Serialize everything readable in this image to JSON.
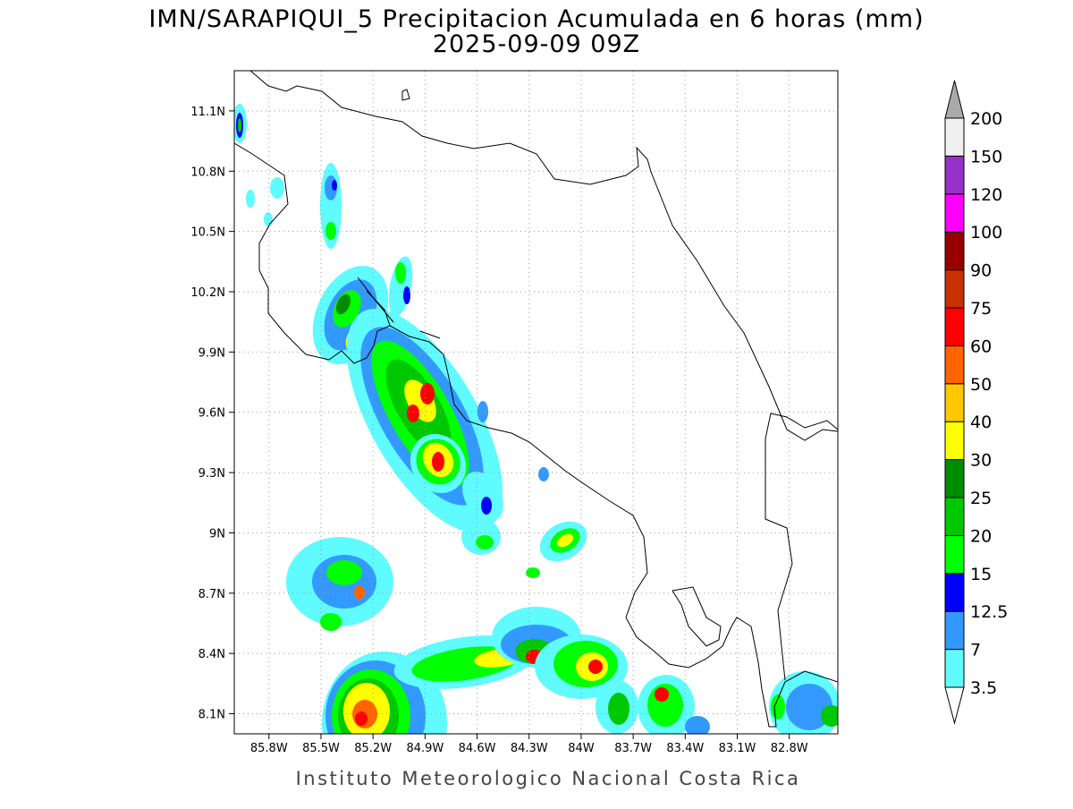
{
  "chart_data": {
    "type": "contour-map",
    "title": "IMN/SARAPIQUI_5 Precipitacion Acumulada en 6 horas (mm)",
    "subtitle": "2025-09-09 09Z",
    "footer": "Instituto Meteorologico Nacional Costa Rica",
    "xlim": [
      -86.0,
      -82.52
    ],
    "ylim": [
      8.0,
      11.3
    ],
    "xticks": [
      {
        "value": -85.8,
        "label": "85.8W"
      },
      {
        "value": -85.5,
        "label": "85.5W"
      },
      {
        "value": -85.2,
        "label": "85.2W"
      },
      {
        "value": -84.9,
        "label": "84.9W"
      },
      {
        "value": -84.6,
        "label": "84.6W"
      },
      {
        "value": -84.3,
        "label": "84.3W"
      },
      {
        "value": -84.0,
        "label": "84W"
      },
      {
        "value": -83.7,
        "label": "83.7W"
      },
      {
        "value": -83.4,
        "label": "83.4W"
      },
      {
        "value": -83.1,
        "label": "83.1W"
      },
      {
        "value": -82.8,
        "label": "82.8W"
      }
    ],
    "yticks": [
      {
        "value": 8.1,
        "label": "8.1N"
      },
      {
        "value": 8.4,
        "label": "8.4N"
      },
      {
        "value": 8.7,
        "label": "8.7N"
      },
      {
        "value": 9.0,
        "label": "9N"
      },
      {
        "value": 9.3,
        "label": "9.3N"
      },
      {
        "value": 9.6,
        "label": "9.6N"
      },
      {
        "value": 9.9,
        "label": "9.9N"
      },
      {
        "value": 10.2,
        "label": "10.2N"
      },
      {
        "value": 10.5,
        "label": "10.5N"
      },
      {
        "value": 10.8,
        "label": "10.8N"
      },
      {
        "value": 11.1,
        "label": "11.1N"
      }
    ],
    "grid": true,
    "colorbar": {
      "levels": [
        3.5,
        7,
        12.5,
        15,
        20,
        25,
        30,
        40,
        50,
        60,
        75,
        90,
        100,
        120,
        150,
        200
      ],
      "colors": [
        "#ffffff",
        "#5ffbff",
        "#3399ff",
        "#0000ff",
        "#00ff00",
        "#00c800",
        "#008c00",
        "#ffff00",
        "#ffc800",
        "#ff6400",
        "#ff0000",
        "#c83200",
        "#960000",
        "#ff00ff",
        "#9632c8",
        "#f0f0f0",
        "#aaaaaa"
      ]
    }
  }
}
